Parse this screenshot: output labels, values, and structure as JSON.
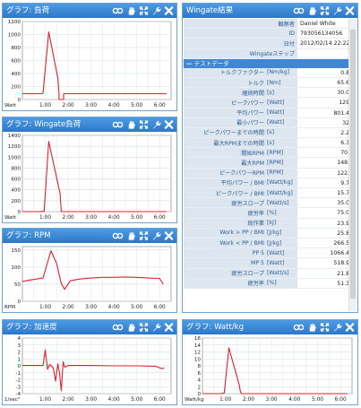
{
  "panels": {
    "load": {
      "title": "グラフ: 負荷",
      "yunit": "Watt"
    },
    "wingate_load": {
      "title": "グラフ: Wingate負荷",
      "yunit": "Watt"
    },
    "rpm": {
      "title": "グラフ: RPM",
      "yunit": "RPM"
    },
    "accel": {
      "title": "グラフ: 加速度",
      "yunit": "1/sec²"
    },
    "wattkg": {
      "title": "グラフ: Watt/kg",
      "yunit": "Watt/kg"
    },
    "results": {
      "title": "Wingate結果"
    }
  },
  "icons": [
    "link-icon",
    "hand-icon",
    "expand-icon",
    "wrench-icon",
    "close-icon"
  ],
  "results": {
    "header": [
      {
        "label": "観察者",
        "value": "Daniel White"
      },
      {
        "label": "ID",
        "value": "793056134056"
      },
      {
        "label": "日付",
        "value": "2012/02/14 22:22"
      },
      {
        "label": "Wingateステップ",
        "value": "1"
      }
    ],
    "section_title": "テストデータ",
    "rows": [
      {
        "label": "トルクファクター",
        "unit": "[Nm/kg]",
        "value": "0.80"
      },
      {
        "label": "トルク",
        "unit": "[Nm]",
        "value": "65.60"
      },
      {
        "label": "継続時間",
        "unit": "[s]",
        "value": "30.06"
      },
      {
        "label": "ピークパワー",
        "unit": "[Watt]",
        "value": "1294"
      },
      {
        "label": "平均パワー",
        "unit": "[Watt]",
        "value": "801.49"
      },
      {
        "label": "最小パワー",
        "unit": "[Watt]",
        "value": "323"
      },
      {
        "label": "ピークパワーまでの時間",
        "unit": "[s]",
        "value": "2.25"
      },
      {
        "label": "最大RPMまでの時間",
        "unit": "[s]",
        "value": "6.33"
      },
      {
        "label": "開始RPM",
        "unit": "[RPM]",
        "value": "70.2"
      },
      {
        "label": "最大RPM",
        "unit": "[RPM]",
        "value": "148.7"
      },
      {
        "label": "ピークパワーRPM",
        "unit": "[RPM]",
        "value": "122.1"
      },
      {
        "label": "平均パワー / BMI",
        "unit": "[Watt/kg]",
        "value": "9.77"
      },
      {
        "label": "ピークパワー / BMI",
        "unit": "[Watt/kg]",
        "value": "15.78"
      },
      {
        "label": "疲労スロープ",
        "unit": "[Watt/s]",
        "value": "35.04"
      },
      {
        "label": "疲労率",
        "unit": "[%]",
        "value": "75.00"
      },
      {
        "label": "総作業",
        "unit": "[kJ]",
        "value": "23.98"
      },
      {
        "label": "Work > PP / BMI",
        "unit": "[J/kg]",
        "value": "25.84"
      },
      {
        "label": "Work < PP / BMI",
        "unit": "[J/kg]",
        "value": "266.54"
      },
      {
        "label": "PP 5",
        "unit": "[Watt]",
        "value": "1066.46"
      },
      {
        "label": "MP 5",
        "unit": "[Watt]",
        "value": "518.91"
      },
      {
        "label": "疲労スロープ",
        "unit": "[Watt/s]",
        "value": "21.85"
      },
      {
        "label": "疲労率",
        "unit": "[%]",
        "value": "51.34"
      }
    ]
  },
  "chart_data": [
    {
      "type": "line",
      "name": "load",
      "x_ticks": [
        "1:00",
        "2:00",
        "3:00",
        "4:00",
        "5:00",
        "6:00"
      ],
      "y_ticks": [
        0,
        200,
        400,
        600,
        800,
        1000,
        1200
      ],
      "ylim": [
        0,
        1200
      ],
      "xlim": [
        0,
        6.5
      ],
      "series": [
        {
          "color": "#e0202a",
          "points": [
            [
              0,
              90
            ],
            [
              0.8,
              90
            ],
            [
              0.9,
              95
            ],
            [
              1.15,
              1040
            ],
            [
              1.55,
              330
            ],
            [
              1.6,
              90
            ],
            [
              1.6,
              0
            ],
            [
              1.8,
              0
            ],
            [
              1.8,
              90
            ],
            [
              6.3,
              90
            ]
          ]
        }
      ]
    },
    {
      "type": "line",
      "name": "wingate_load",
      "x_ticks": [
        "1:00",
        "2:00",
        "3:00",
        "4:00",
        "5:00",
        "6:00"
      ],
      "y_ticks": [
        0,
        200,
        400,
        600,
        800,
        1000,
        1200,
        1400
      ],
      "ylim": [
        0,
        1400
      ],
      "xlim": [
        0,
        6.5
      ],
      "series": [
        {
          "color": "#e0202a",
          "points": [
            [
              0,
              0
            ],
            [
              0.8,
              0
            ],
            [
              0.95,
              10
            ],
            [
              1.15,
              1290
            ],
            [
              1.65,
              330
            ],
            [
              1.7,
              0
            ],
            [
              6.3,
              0
            ]
          ]
        }
      ]
    },
    {
      "type": "line",
      "name": "rpm",
      "x_ticks": [
        "1:00",
        "2:00",
        "3:00",
        "4:00",
        "5:00",
        "6:00"
      ],
      "y_ticks": [
        0,
        50,
        100,
        150
      ],
      "ylim": [
        0,
        160
      ],
      "xlim": [
        0,
        6.5
      ],
      "series": [
        {
          "color": "#e0202a",
          "points": [
            [
              0,
              58
            ],
            [
              0.3,
              62
            ],
            [
              0.7,
              66
            ],
            [
              0.9,
              68
            ],
            [
              1.25,
              148
            ],
            [
              1.5,
              110
            ],
            [
              1.7,
              52
            ],
            [
              1.85,
              35
            ],
            [
              2.1,
              60
            ],
            [
              2.5,
              65
            ],
            [
              3,
              68
            ],
            [
              3.5,
              70
            ],
            [
              4,
              70
            ],
            [
              4.5,
              71
            ],
            [
              5,
              70
            ],
            [
              5.5,
              68
            ],
            [
              6,
              67
            ],
            [
              6.15,
              50
            ]
          ]
        }
      ]
    },
    {
      "type": "line",
      "name": "accel",
      "x_ticks": [
        "1:00",
        "2:00",
        "3:00",
        "4:00",
        "5:00",
        "6:00"
      ],
      "y_ticks": [
        -4,
        -3,
        -2,
        -1,
        0,
        1,
        2,
        3,
        4
      ],
      "ylim": [
        -4,
        4
      ],
      "xlim": [
        0,
        6.5
      ],
      "series": [
        {
          "color": "#e0202a",
          "points": [
            [
              0,
              0.05
            ],
            [
              0.9,
              0.05
            ],
            [
              1.0,
              2.3
            ],
            [
              1.1,
              -0.5
            ],
            [
              1.2,
              0.2
            ],
            [
              1.35,
              -0.3
            ],
            [
              1.45,
              -2.2
            ],
            [
              1.55,
              0.3
            ],
            [
              1.62,
              -1.0
            ],
            [
              1.7,
              -3.6
            ],
            [
              1.78,
              0.6
            ],
            [
              1.85,
              -0.2
            ],
            [
              2.0,
              0.05
            ],
            [
              3,
              0.05
            ],
            [
              4,
              0
            ],
            [
              5,
              0
            ],
            [
              5.8,
              -0.05
            ],
            [
              6.1,
              -0.4
            ],
            [
              6.2,
              -0.3
            ]
          ]
        }
      ]
    },
    {
      "type": "line",
      "name": "wattkg",
      "x_ticks": [
        "1:00",
        "2:00",
        "3:00",
        "4:00",
        "5:00",
        "6:00"
      ],
      "y_ticks": [
        0,
        2,
        4,
        6,
        8,
        10,
        12,
        14,
        16
      ],
      "ylim": [
        0,
        16
      ],
      "xlim": [
        0,
        6.5
      ],
      "series": [
        {
          "color": "#e0202a",
          "points": [
            [
              0,
              0
            ],
            [
              0.8,
              0
            ],
            [
              0.95,
              0.2
            ],
            [
              1.15,
              13.2
            ],
            [
              1.6,
              2.5
            ],
            [
              1.65,
              0.5
            ],
            [
              1.7,
              0
            ],
            [
              6.3,
              0
            ]
          ]
        }
      ]
    }
  ]
}
